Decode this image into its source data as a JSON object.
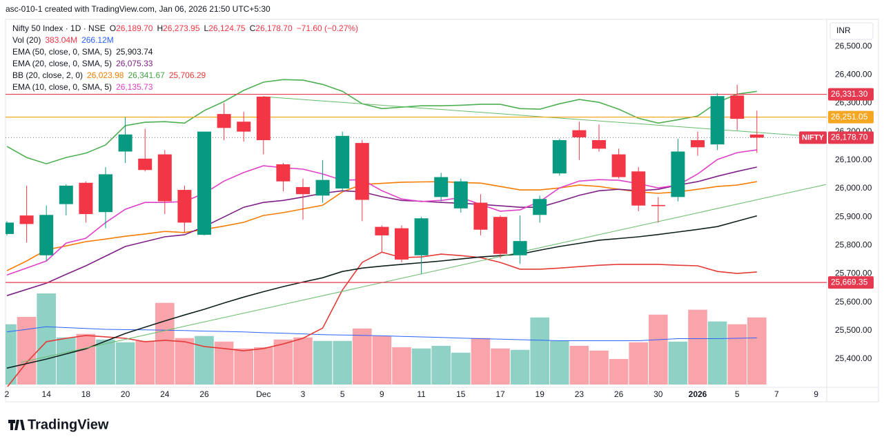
{
  "header": "asc-010-1 created with TradingView.com, Jan 06, 2026 21:50 UTC+5:30",
  "logo": "TradingView",
  "chart_data": {
    "type": "candlestick",
    "currency": "INR",
    "legend": [
      [
        {
          "text": "Nifty 50 Index · 1D · NSE",
          "color": "#131722"
        },
        {
          "text": "O",
          "color": "#131722"
        },
        {
          "text": "26,189.70",
          "color": "#f23645"
        },
        {
          "text": "H",
          "color": "#131722"
        },
        {
          "text": "26,273.95",
          "color": "#f23645"
        },
        {
          "text": "L",
          "color": "#131722"
        },
        {
          "text": "26,124.75",
          "color": "#f23645"
        },
        {
          "text": "C",
          "color": "#131722"
        },
        {
          "text": "26,178.70",
          "color": "#f23645"
        },
        {
          "text": "−71.60 (−0.27%)",
          "color": "#f23645"
        }
      ],
      [
        {
          "text": "Vol (20)",
          "color": "#131722"
        },
        {
          "text": "383.04M",
          "color": "#f23645"
        },
        {
          "text": "266.12M",
          "color": "#2962ff"
        }
      ],
      [
        {
          "text": "EMA (50, close, 0, SMA, 5)",
          "color": "#131722"
        },
        {
          "text": "25,903.74",
          "color": "#131722"
        }
      ],
      [
        {
          "text": "EMA (20, close, 0, SMA, 5)",
          "color": "#131722"
        },
        {
          "text": "26,075.33",
          "color": "#7e1f86"
        }
      ],
      [
        {
          "text": "BB (20, close, 2, 0)",
          "color": "#131722"
        },
        {
          "text": "26,023.98",
          "color": "#f57c00"
        },
        {
          "text": "26,341.67",
          "color": "#43a047"
        },
        {
          "text": "25,706.29",
          "color": "#e53935"
        }
      ],
      [
        {
          "text": "EMA (10, close, 0, SMA, 5)",
          "color": "#131722"
        },
        {
          "text": "26,135.73",
          "color": "#e040c8"
        }
      ]
    ],
    "categories": [
      "2",
      null,
      "14",
      null,
      "18",
      null,
      "20",
      null,
      "24",
      null,
      "26",
      null,
      null,
      "Dec",
      null,
      "3",
      null,
      "5",
      null,
      "9",
      null,
      "11",
      null,
      "15",
      null,
      "17",
      null,
      "19",
      null,
      "23",
      null,
      "26",
      null,
      "30",
      null,
      "2026",
      null,
      "5",
      null,
      "7",
      null,
      "9"
    ],
    "open": [
      25840,
      25905,
      25765,
      25945,
      26020,
      25917,
      26130,
      26105,
      26120,
      25995,
      25837,
      26262,
      26235,
      26323,
      26085,
      26005,
      25975,
      26000,
      26160,
      25865,
      25860,
      25765,
      25970,
      25930,
      25950,
      25900,
      25765,
      25907,
      26053,
      26205,
      26170,
      26120,
      26060,
      25942,
      25970,
      26170,
      26155,
      26327,
      26189.7,
      null,
      null,
      null
    ],
    "high": [
      25885,
      26010,
      25940,
      26015,
      26025,
      26075,
      26250,
      26210,
      26135,
      26010,
      26200,
      26300,
      26270,
      26325,
      26090,
      26035,
      26100,
      26200,
      26170,
      25870,
      25870,
      25900,
      26055,
      26035,
      25980,
      25905,
      25905,
      25975,
      26175,
      26235,
      26225,
      26140,
      26075,
      25970,
      26175,
      26200,
      26335,
      26365,
      26273.95,
      null,
      null,
      null
    ],
    "low": [
      25835,
      25810,
      25745,
      25905,
      25880,
      25860,
      26090,
      26060,
      25910,
      25845,
      25835,
      26170,
      26165,
      26120,
      25990,
      25890,
      25950,
      25990,
      25885,
      25775,
      25740,
      25700,
      25955,
      25915,
      25835,
      25755,
      25735,
      25880,
      26045,
      26100,
      26130,
      26035,
      25920,
      25880,
      25955,
      26115,
      26135,
      26205,
      26124.75,
      null,
      null,
      null
    ],
    "close": [
      25880,
      25875,
      25907,
      26010,
      25910,
      26050,
      26190,
      26065,
      25955,
      25880,
      26200,
      26213,
      26200,
      26170,
      26025,
      25980,
      26030,
      26185,
      25960,
      25835,
      25750,
      25895,
      26040,
      26025,
      25855,
      25770,
      25815,
      25963,
      26170,
      26180,
      26140,
      26040,
      25940,
      25938,
      26130,
      26145,
      26325,
      26245,
      26178.7,
      null,
      null,
      null
    ],
    "up_color": "#089981",
    "down_color": "#f23645",
    "volume": {
      "values": [
        344,
        386,
        520,
        269,
        289,
        257,
        241,
        249,
        466,
        265,
        277,
        245,
        206,
        213,
        257,
        269,
        249,
        249,
        320,
        277,
        213,
        206,
        221,
        182,
        265,
        206,
        198,
        383,
        249,
        221,
        194,
        146,
        241,
        399,
        245,
        427,
        360,
        344,
        383.04,
        null,
        null,
        null
      ],
      "up_color": "rgba(8,153,129,0.45)",
      "down_color": "rgba(242,54,69,0.45)",
      "ma": {
        "color": "#2962ff",
        "values": [
          300,
          315,
          330,
          325,
          320,
          315,
          313,
          312,
          310,
          308,
          305,
          303,
          300,
          296,
          293,
          289,
          285,
          283,
          281,
          278,
          275,
          272,
          269,
          265,
          262,
          259,
          256,
          253,
          250,
          250,
          250,
          250,
          250,
          256,
          262,
          262,
          262,
          264,
          266.12,
          null,
          null,
          null
        ]
      }
    },
    "overlays": [
      {
        "color": "#e53935",
        "values": [
          25300,
          25388,
          25461,
          25473,
          25483,
          25478,
          25473,
          25461,
          25466,
          25461,
          25444,
          25437,
          25429,
          25437,
          25453,
          25473,
          25509,
          25643,
          25740,
          25776,
          25757,
          25759,
          25769,
          25764,
          25757,
          25740,
          25716,
          25716,
          25720,
          25725,
          25730,
          25733,
          25733,
          25733,
          25730,
          25728,
          25708,
          25701,
          25706.29,
          null,
          null,
          null
        ]
      },
      {
        "color": "#4caf50",
        "values": [
          26148,
          26109,
          26087,
          26109,
          26124,
          26153,
          26221,
          26233,
          26235,
          26230,
          26274,
          26306,
          26345,
          26374,
          26383,
          26381,
          26366,
          26342,
          26298,
          26281,
          26286,
          26291,
          26291,
          26293,
          26296,
          26296,
          26281,
          26279,
          26298,
          26313,
          26303,
          26279,
          26247,
          26230,
          26242,
          26255,
          26303,
          26332,
          26341.67,
          null,
          null,
          null
        ]
      },
      {
        "color": "#f57c00",
        "values": [
          25711,
          25745,
          25784,
          25798,
          25813,
          25822,
          25832,
          25840,
          25849,
          25845,
          25856,
          25868,
          25881,
          25905,
          25915,
          25928,
          25941,
          25988,
          26014,
          26018,
          26022,
          26023,
          26024,
          26021,
          26019,
          26007,
          25995,
          25995,
          26002,
          26012,
          26007,
          25997,
          25988,
          25983,
          25988,
          25997,
          26007,
          26012,
          26023.98,
          null,
          null,
          null
        ]
      },
      {
        "color": "#0d1f1a",
        "values": [
          25368,
          25384,
          25400,
          25418,
          25436,
          25463,
          25490,
          25512,
          25534,
          25555,
          25575,
          25597,
          25618,
          25637,
          25655,
          25671,
          25686,
          25708,
          25720,
          25727,
          25733,
          25739,
          25745,
          25752,
          25759,
          25764,
          25769,
          25783,
          25796,
          25807,
          25818,
          25824,
          25830,
          25838,
          25847,
          25856,
          25866,
          25885,
          25903.74,
          null,
          null,
          null
        ]
      },
      {
        "color": "#7e1f86",
        "values": [
          25623,
          25645,
          25667,
          25698,
          25728,
          25762,
          25796,
          25813,
          25830,
          25837,
          25866,
          25900,
          25934,
          25951,
          25958,
          25970,
          25983,
          25992,
          25988,
          25971,
          25958,
          25955,
          25951,
          25948,
          25944,
          25939,
          25934,
          25934,
          25954,
          25976,
          25992,
          25997,
          25992,
          25997,
          26012,
          26024,
          26043,
          26060,
          26075.33,
          null,
          null,
          null
        ]
      },
      {
        "color": "#e040c8",
        "values": [
          25696,
          25720,
          25745,
          25808,
          25825,
          25880,
          25927,
          25951,
          25951,
          25954,
          25983,
          26026,
          26056,
          26080,
          26073,
          26068,
          26051,
          26029,
          26031,
          25992,
          25963,
          25954,
          25958,
          25968,
          25944,
          25920,
          25925,
          25954,
          26002,
          26026,
          26031,
          26029,
          26017,
          26002,
          26012,
          26051,
          26102,
          26126,
          26135.73,
          null,
          null,
          null
        ]
      }
    ],
    "trendlines": [
      {
        "color": "#66bb6a",
        "from": {
          "x": 13,
          "y": 26323
        },
        "to": {
          "x": 40.5,
          "y": 26185
        }
      },
      {
        "color": "#66bb6a",
        "from": {
          "x": 0.7,
          "y": 25388
        },
        "to": {
          "x": 41.5,
          "y": 26014
        }
      }
    ],
    "hlines": [
      {
        "value": 26331.3,
        "label": "26,331.30",
        "color": "#e53950"
      },
      {
        "value": 26251.05,
        "label": "26,251.05",
        "color": "#f5a623"
      },
      {
        "value": 25669.35,
        "label": "25,669.35",
        "color": "#e53950"
      }
    ],
    "last_price": {
      "name": "NIFTY",
      "value": 26178.7,
      "label": "26,178.70",
      "color": "#e53950"
    },
    "ylim": [
      25303,
      26595
    ],
    "yticks": [
      {
        "value": 25400,
        "label": "25,400.00"
      },
      {
        "value": 25500,
        "label": "25,500.00"
      },
      {
        "value": 25600,
        "label": "25,600.00"
      },
      {
        "value": 25700,
        "label": "25,700.00"
      },
      {
        "value": 25800,
        "label": "25,800.00"
      },
      {
        "value": 25900,
        "label": "25,900.00"
      },
      {
        "value": 26000,
        "label": "26,000.00"
      },
      {
        "value": 26100,
        "label": "26,100.00"
      },
      {
        "value": 26200,
        "label": "26,200.00"
      },
      {
        "value": 26300,
        "label": "26,300.00"
      },
      {
        "value": 26400,
        "label": "26,400.00"
      },
      {
        "value": 26500,
        "label": "26,500.00"
      }
    ]
  }
}
